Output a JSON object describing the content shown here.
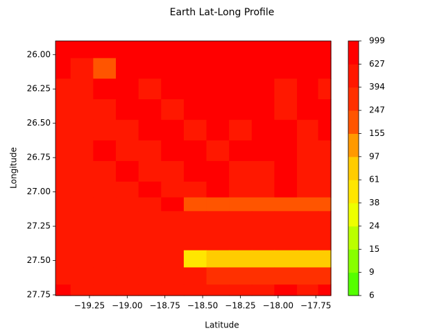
{
  "chart_data": {
    "type": "contour",
    "title": "Earth Lat-Long Profile",
    "x_label": "Latitude",
    "y_label": "Longitude",
    "x": [
      -19.45,
      -19.3,
      -19.15,
      -19.0,
      -18.85,
      -18.7,
      -18.55,
      -18.4,
      -18.25,
      -18.1,
      -17.95,
      -17.8,
      -17.67
    ],
    "y": [
      25.95,
      26.1,
      26.25,
      26.4,
      26.55,
      26.7,
      26.85,
      27.0,
      27.08,
      27.2,
      27.35,
      27.5,
      27.6,
      27.75
    ],
    "z": [
      [
        700,
        650,
        700,
        800,
        700,
        650,
        700,
        720,
        800,
        700,
        650,
        800,
        900
      ],
      [
        650,
        600,
        200,
        700,
        650,
        700,
        650,
        700,
        750,
        700,
        650,
        700,
        850
      ],
      [
        500,
        600,
        650,
        700,
        600,
        650,
        700,
        650,
        700,
        650,
        600,
        700,
        600
      ],
      [
        550,
        500,
        600,
        650,
        700,
        600,
        650,
        700,
        650,
        700,
        600,
        650,
        650
      ],
      [
        600,
        550,
        500,
        600,
        650,
        700,
        600,
        650,
        600,
        650,
        700,
        600,
        650
      ],
      [
        500,
        600,
        650,
        550,
        600,
        650,
        700,
        600,
        650,
        700,
        650,
        600,
        550
      ],
      [
        550,
        500,
        600,
        650,
        550,
        600,
        650,
        700,
        600,
        550,
        650,
        600,
        600
      ],
      [
        600,
        550,
        500,
        600,
        650,
        550,
        600,
        650,
        550,
        600,
        650,
        550,
        600
      ],
      [
        550,
        600,
        550,
        500,
        600,
        650,
        200,
        200,
        200,
        200,
        200,
        200,
        200
      ],
      [
        500,
        550,
        600,
        550,
        600,
        550,
        500,
        600,
        550,
        600,
        500,
        550,
        500
      ],
      [
        600,
        500,
        550,
        600,
        550,
        600,
        550,
        500,
        600,
        550,
        500,
        450,
        500
      ],
      [
        550,
        600,
        500,
        550,
        600,
        500,
        60,
        80,
        80,
        80,
        80,
        80,
        80
      ],
      [
        600,
        550,
        600,
        500,
        550,
        450,
        400,
        350,
        350,
        300,
        350,
        300,
        350
      ],
      [
        650,
        600,
        550,
        600,
        500,
        550,
        600,
        500,
        550,
        600,
        650,
        600,
        650
      ]
    ],
    "levels": [
      6,
      9,
      15,
      24,
      38,
      61,
      97,
      155,
      247,
      394,
      627,
      999
    ],
    "colors": [
      "#55ff00",
      "#88ff00",
      "#bbff00",
      "#eeff00",
      "#ffe600",
      "#ffcc00",
      "#ff9900",
      "#ff5500",
      "#ff3000",
      "#ff1800",
      "#ff0000"
    ],
    "xlim": [
      -19.475,
      -17.65
    ],
    "ylim": [
      27.755,
      25.9
    ],
    "xticks": [
      {
        "value": -19.25,
        "label": "−19.25"
      },
      {
        "value": -19.0,
        "label": "−19.00"
      },
      {
        "value": -18.75,
        "label": "−18.75"
      },
      {
        "value": -18.5,
        "label": "−18.50"
      },
      {
        "value": -18.25,
        "label": "−18.25"
      },
      {
        "value": -18.0,
        "label": "−18.00"
      },
      {
        "value": -17.75,
        "label": "−17.75"
      }
    ],
    "yticks": [
      {
        "value": 26.0,
        "label": "26.00"
      },
      {
        "value": 26.25,
        "label": "26.25"
      },
      {
        "value": 26.5,
        "label": "26.50"
      },
      {
        "value": 26.75,
        "label": "26.75"
      },
      {
        "value": 27.0,
        "label": "27.00"
      },
      {
        "value": 27.25,
        "label": "27.25"
      },
      {
        "value": 27.5,
        "label": "27.50"
      },
      {
        "value": 27.75,
        "label": "27.75"
      }
    ]
  }
}
